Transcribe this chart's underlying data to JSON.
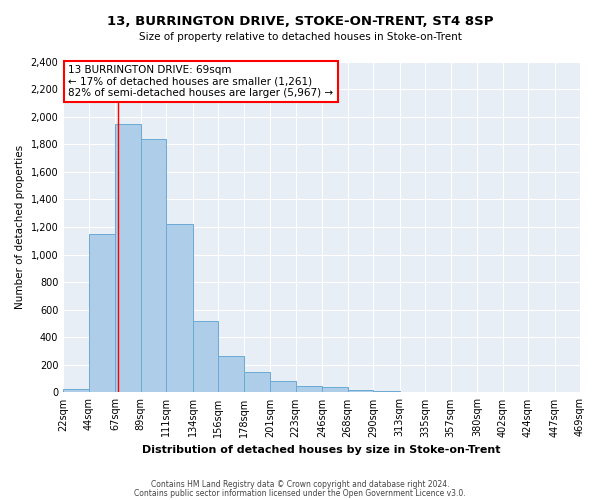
{
  "title": "13, BURRINGTON DRIVE, STOKE-ON-TRENT, ST4 8SP",
  "subtitle": "Size of property relative to detached houses in Stoke-on-Trent",
  "xlabel": "Distribution of detached houses by size in Stoke-on-Trent",
  "ylabel": "Number of detached properties",
  "bins": [
    22,
    44,
    67,
    89,
    111,
    134,
    156,
    178,
    201,
    223,
    246,
    268,
    290,
    313,
    335,
    357,
    380,
    402,
    424,
    447,
    469
  ],
  "bin_labels": [
    "22sqm",
    "44sqm",
    "67sqm",
    "89sqm",
    "111sqm",
    "134sqm",
    "156sqm",
    "178sqm",
    "201sqm",
    "223sqm",
    "246sqm",
    "268sqm",
    "290sqm",
    "313sqm",
    "335sqm",
    "357sqm",
    "380sqm",
    "402sqm",
    "424sqm",
    "447sqm",
    "469sqm"
  ],
  "values": [
    25,
    1150,
    1950,
    1840,
    1220,
    520,
    265,
    150,
    80,
    50,
    40,
    15,
    8,
    5,
    3,
    2,
    1,
    1,
    1,
    1
  ],
  "bar_color": "#aecde8",
  "bar_edge_color": "#6aaad4",
  "red_line_x": 69,
  "annotation_title": "13 BURRINGTON DRIVE: 69sqm",
  "annotation_line1": "← 17% of detached houses are smaller (1,261)",
  "annotation_line2": "82% of semi-detached houses are larger (5,967) →",
  "ylim": [
    0,
    2400
  ],
  "yticks": [
    0,
    200,
    400,
    600,
    800,
    1000,
    1200,
    1400,
    1600,
    1800,
    2000,
    2200,
    2400
  ],
  "footer1": "Contains HM Land Registry data © Crown copyright and database right 2024.",
  "footer2": "Contains public sector information licensed under the Open Government Licence v3.0.",
  "bg_color": "#ffffff",
  "plot_bg_color": "#e8eef5",
  "grid_color": "#ffffff"
}
